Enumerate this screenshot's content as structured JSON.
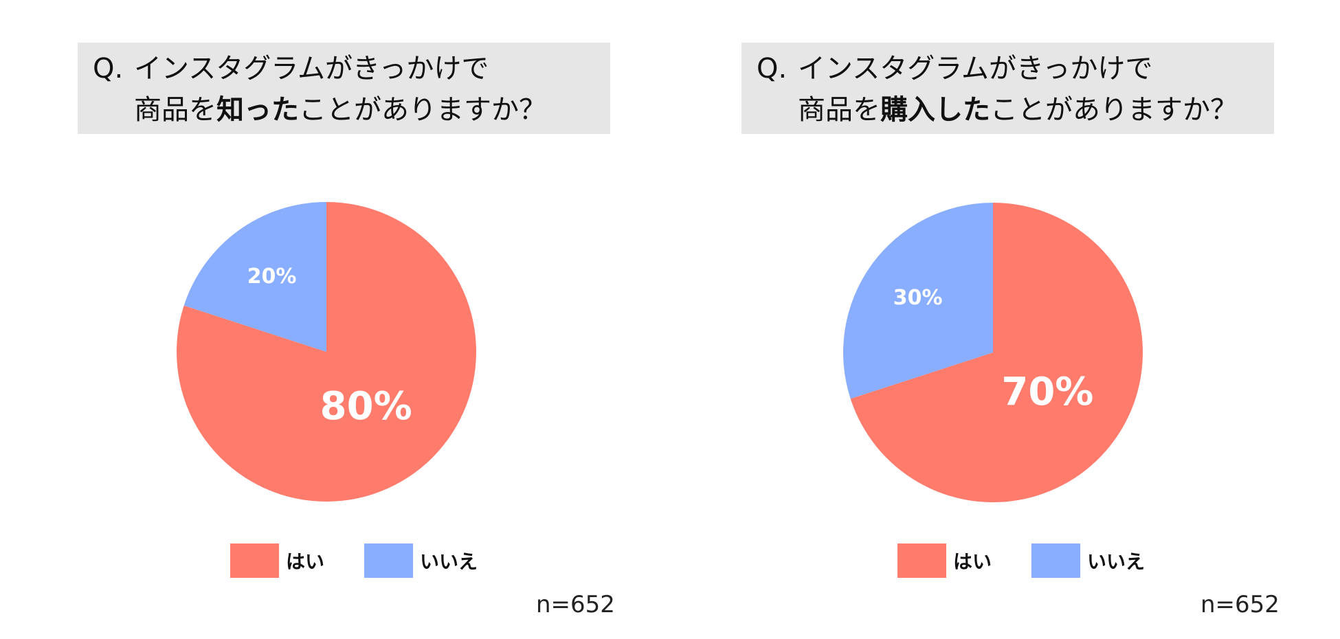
{
  "colors": {
    "yes": "#ff7b6b",
    "no": "#8aaeff",
    "question_bg": "#e6e6e6"
  },
  "chart_data": [
    {
      "type": "pie",
      "title_prefix": "Q.",
      "title_line1": "インスタグラムがきっかけで",
      "title_line2_before": "商品を",
      "title_line2_bold": "知った",
      "title_line2_after": "ことがありますか？",
      "slices": [
        {
          "label": "はい",
          "value": 80,
          "display": "80%"
        },
        {
          "label": "いいえ",
          "value": 20,
          "display": "20%"
        }
      ],
      "legend": [
        "はい",
        "いいえ"
      ],
      "n": "n=652"
    },
    {
      "type": "pie",
      "title_prefix": "Q.",
      "title_line1": "インスタグラムがきっかけで",
      "title_line2_before": "商品を",
      "title_line2_bold": "購入した",
      "title_line2_after": "ことがありますか？",
      "slices": [
        {
          "label": "はい",
          "value": 70,
          "display": "70%"
        },
        {
          "label": "いいえ",
          "value": 30,
          "display": "30%"
        }
      ],
      "legend": [
        "はい",
        "いいえ"
      ],
      "n": "n=652"
    }
  ]
}
